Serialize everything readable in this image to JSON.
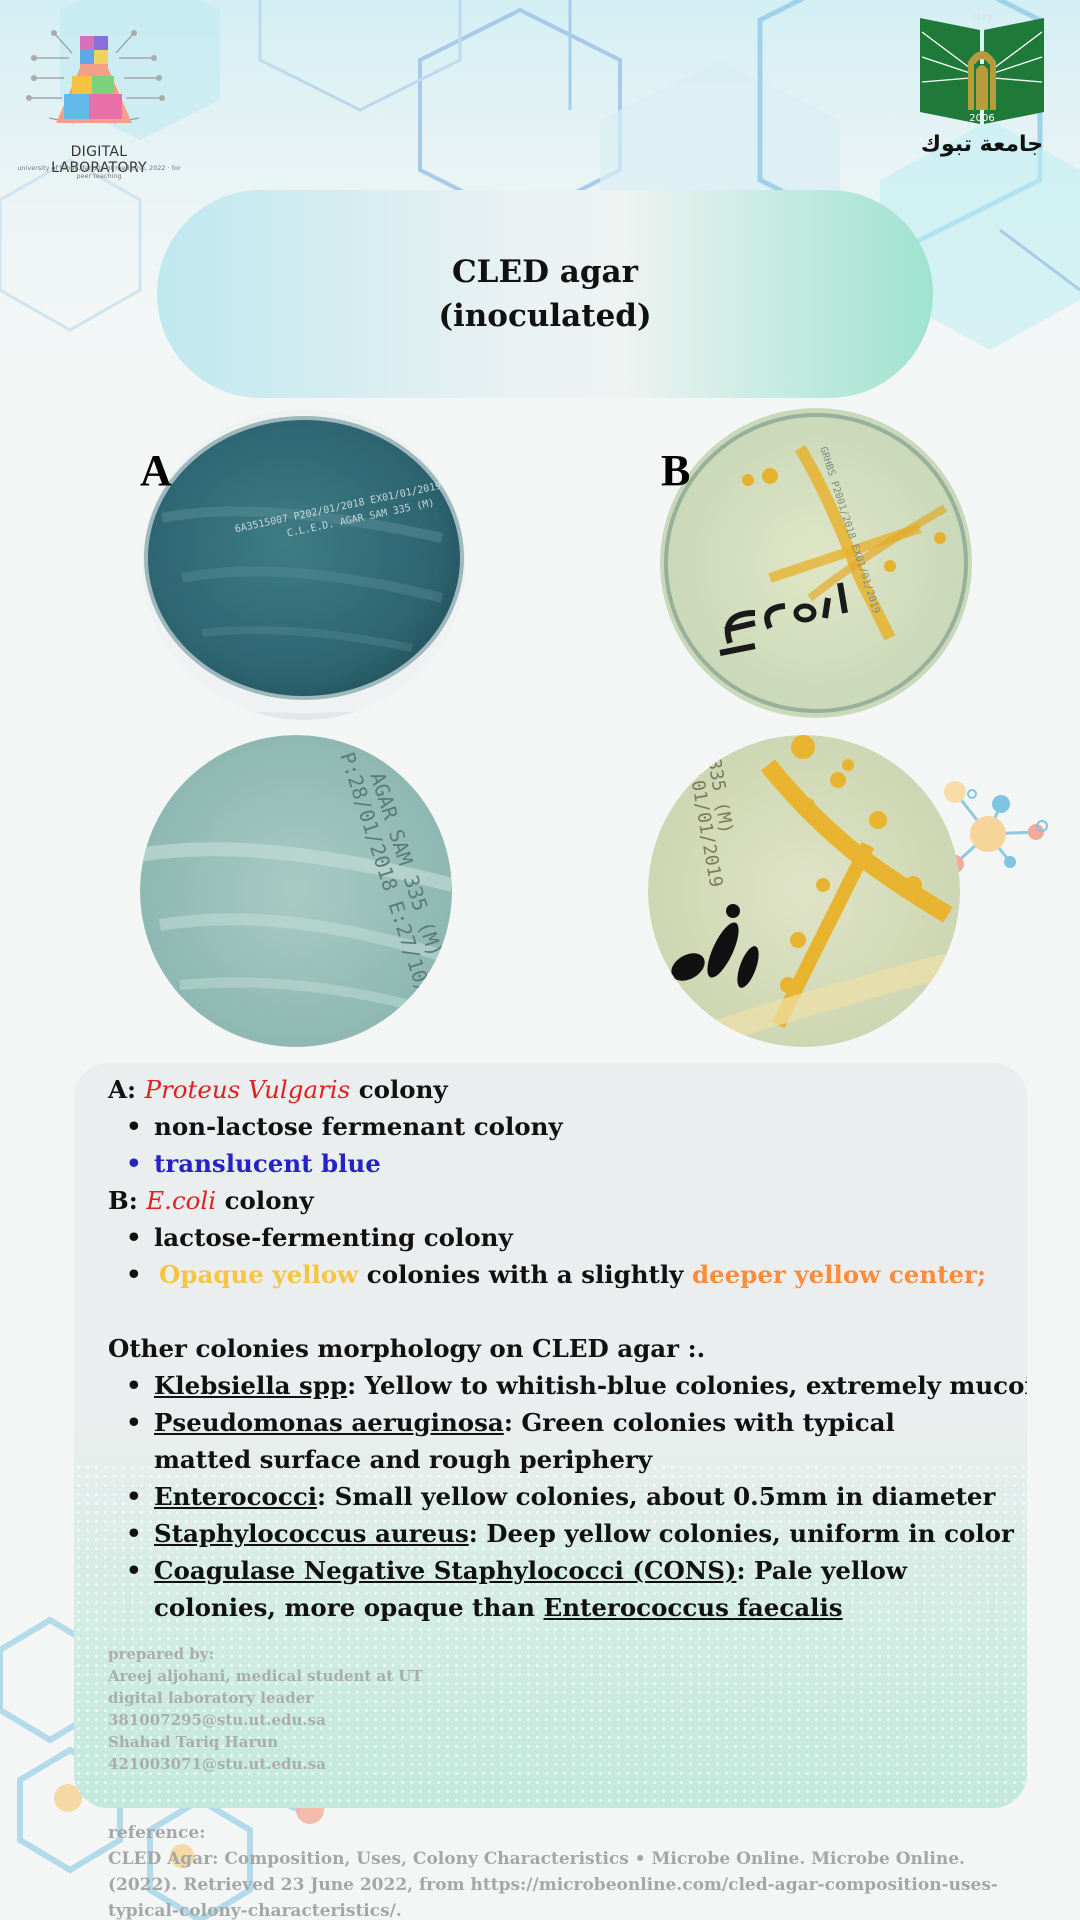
{
  "header": {
    "lab_logo_text": "DIGITAL LABORATORY",
    "lab_logo_subtext": "university of tabuk, faculty of medicine, 2022 · for peer teaching",
    "university_name": "جامعة تبوك",
    "university_year": "2006",
    "university_hijri": "١٤٢٧"
  },
  "title": {
    "line1": "CLED agar",
    "line2": "(inoculated)"
  },
  "plates": {
    "label_a": "A",
    "label_b": "B"
  },
  "info": {
    "a_prefix": "A: ",
    "a_organism": "Proteus Vulgaris",
    "a_suffix": " colony",
    "a_bullets": [
      "non-lactose fermenant colony",
      "translucent blue"
    ],
    "b_prefix": "B: ",
    "b_organism": "E.coli",
    "b_suffix": " colony",
    "b_bullet1": "lactose-fermenting colony",
    "b_bullet2_part1": "Opaque yellow",
    "b_bullet2_part2": " colonies with a slightly ",
    "b_bullet2_part3": "deeper yellow center;",
    "other_heading": "Other colonies morphology  on CLED agar :.",
    "others": [
      {
        "name": "Klebsiella spp",
        "desc": ": Yellow to whitish-blue colonies, extremely mucoid"
      },
      {
        "name": "Pseudomonas aeruginosa",
        "desc": ": Green colonies with typical matted surface and rough periphery"
      },
      {
        "name": "Enterococci",
        "desc": ": Small yellow colonies, about 0.5mm in diameter"
      },
      {
        "name": "Staphylococcus aureus",
        "desc": ": Deep yellow colonies, uniform in color"
      },
      {
        "name": "Coagulase Negative Staphylococci (CONS)",
        "desc": ": Pale yellow colonies, more opaque than ",
        "extra": "Enterococcus faecalis"
      }
    ]
  },
  "prepared": {
    "heading": "prepared by:",
    "lines": [
      "Areej aljohani, medical student at UT",
      "digital laboratory leader",
      "381007295@stu.ut.edu.sa",
      "Shahad Tariq Harun",
      "421003071@stu.ut.edu.sa"
    ]
  },
  "reference": {
    "heading": "reference:",
    "text": "CLED Agar: Composition, Uses, Colony Characteristics • Microbe Online. Microbe Online. (2022). Retrieved 23 June 2022, from https://microbeonline.com/cled-agar-composition-uses-typical-colony-characteristics/."
  },
  "colors": {
    "organism_red": "#e02020",
    "translucent_blue": "#2323c8",
    "opaque_yellow": "#f7c542",
    "deeper_yellow": "#ff8c3a",
    "plate_a_blue": "#2f6672",
    "plate_b_yellow": "#e6b12e"
  }
}
